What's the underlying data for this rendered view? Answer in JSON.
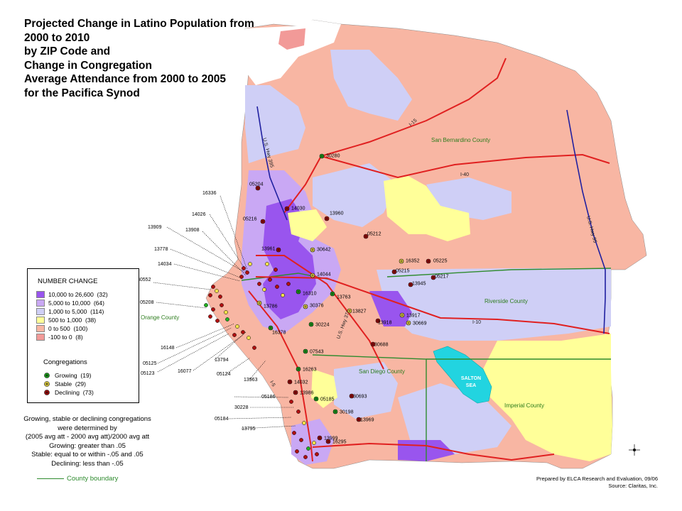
{
  "title_lines": [
    "Projected Change in Latino Population from",
    "2000 to 2010",
    "by ZIP Code and",
    "Change in Congregation",
    "Average Attendance from 2000 to 2005",
    "for the Pacifica Synod"
  ],
  "colors": {
    "class_10000_26600": "#9955ee",
    "class_5000_10000": "#c9a8f4",
    "class_1000_5000": "#cfcff6",
    "class_500_1000": "#ffff99",
    "class_0_500": "#f8b6a3",
    "class_neg100_0": "#f29a98",
    "growing": "#22b022",
    "stable": "#f4e24a",
    "declining": "#b01010",
    "county_boundary": "#2e8b2e",
    "highway": "#e02020",
    "us_highway": "#2020a0",
    "water": "#22d4e0"
  },
  "legend": {
    "number_change_heading": "NUMBER CHANGE",
    "classes": [
      {
        "range": "10,000 to 26,600",
        "count": "(32)",
        "color": "#9955ee"
      },
      {
        "range": "5,000 to 10,000",
        "count": "(64)",
        "color": "#c9a8f4"
      },
      {
        "range": "1,000 to  5,000",
        "count": "(114)",
        "color": "#cfcff6"
      },
      {
        "range": "500 to  1,000",
        "count": "(38)",
        "color": "#ffff99"
      },
      {
        "range": "0 to    500",
        "count": "(100)",
        "color": "#f8b6a3"
      },
      {
        "range": "-100 to      0",
        "count": "(8)",
        "color": "#f29a98"
      }
    ],
    "congregations_heading": "Congregations",
    "congregations": [
      {
        "label": "Growing",
        "count": "(19)",
        "color": "#22b022"
      },
      {
        "label": "Stable",
        "count": "(29)",
        "color": "#f4e24a"
      },
      {
        "label": "Declining",
        "count": "(73)",
        "color": "#b01010"
      }
    ]
  },
  "notes": [
    "Growing, stable or declining congregations",
    "were determined by",
    "(2005 avg att - 2000 avg att)/2000 avg att",
    "Growing: greater than .05",
    "Stable: equal to or within -.05 and .05",
    "Declining: less than -.05"
  ],
  "county_boundary_label": "County boundary",
  "credit": {
    "line1": "Prepared by  ELCA Research and Evaluation, 09/06",
    "line2": "Source: Claritas, Inc."
  },
  "counties": {
    "san_bernardino": "San Bernardino County",
    "riverside": "Riverside County",
    "orange": "Orange County",
    "san_diego": "San Diego County",
    "imperial": "Imperial County"
  },
  "water_label_lines": [
    "SALTON",
    "SEA"
  ],
  "highways": {
    "i15": "I-15",
    "i40": "I-40",
    "i10": "I-10",
    "i5": "I-5",
    "us395": "U.S. Hwy 395",
    "us95": "U.S. Hwy 95",
    "us371": "U.S. Hwy 371"
  },
  "congregation_points": [
    {
      "id": "30280",
      "status": "growing"
    },
    {
      "id": "05204",
      "status": "declining"
    },
    {
      "id": "14030",
      "status": "declining"
    },
    {
      "id": "13960",
      "status": "declining"
    },
    {
      "id": "05216",
      "status": "declining"
    },
    {
      "id": "05212",
      "status": "declining"
    },
    {
      "id": "13961",
      "status": "declining"
    },
    {
      "id": "30642",
      "status": "stable"
    },
    {
      "id": "16352",
      "status": "stable"
    },
    {
      "id": "05225",
      "status": "declining"
    },
    {
      "id": "14044",
      "status": "stable"
    },
    {
      "id": "05215",
      "status": "declining"
    },
    {
      "id": "05217",
      "status": "declining"
    },
    {
      "id": "13945",
      "status": "declining"
    },
    {
      "id": "16310",
      "status": "growing"
    },
    {
      "id": "13763",
      "status": "growing"
    },
    {
      "id": "30376",
      "status": "stable"
    },
    {
      "id": "13827",
      "status": "stable"
    },
    {
      "id": "13917",
      "status": "stable"
    },
    {
      "id": "13918",
      "status": "declining"
    },
    {
      "id": "30669",
      "status": "stable"
    },
    {
      "id": "13786",
      "status": "stable"
    },
    {
      "id": "30224",
      "status": "growing"
    },
    {
      "id": "16378",
      "status": "growing"
    },
    {
      "id": "30688",
      "status": "declining"
    },
    {
      "id": "07543",
      "status": "growing"
    },
    {
      "id": "16263",
      "status": "growing"
    },
    {
      "id": "14032",
      "status": "declining"
    },
    {
      "id": "13986",
      "status": "declining"
    },
    {
      "id": "05185",
      "status": "growing"
    },
    {
      "id": "30693",
      "status": "declining"
    },
    {
      "id": "30198",
      "status": "growing"
    },
    {
      "id": "13969",
      "status": "declining"
    },
    {
      "id": "13999",
      "status": "declining"
    },
    {
      "id": "16295",
      "status": "declining"
    }
  ],
  "left_callouts": [
    "16336",
    "14026",
    "13909",
    "13908",
    "13778",
    "14034",
    "30552",
    "05208",
    "16148",
    "05125",
    "05123",
    "16077",
    "13794",
    "05124",
    "13963",
    "05186",
    "30228",
    "05184",
    "13795"
  ]
}
